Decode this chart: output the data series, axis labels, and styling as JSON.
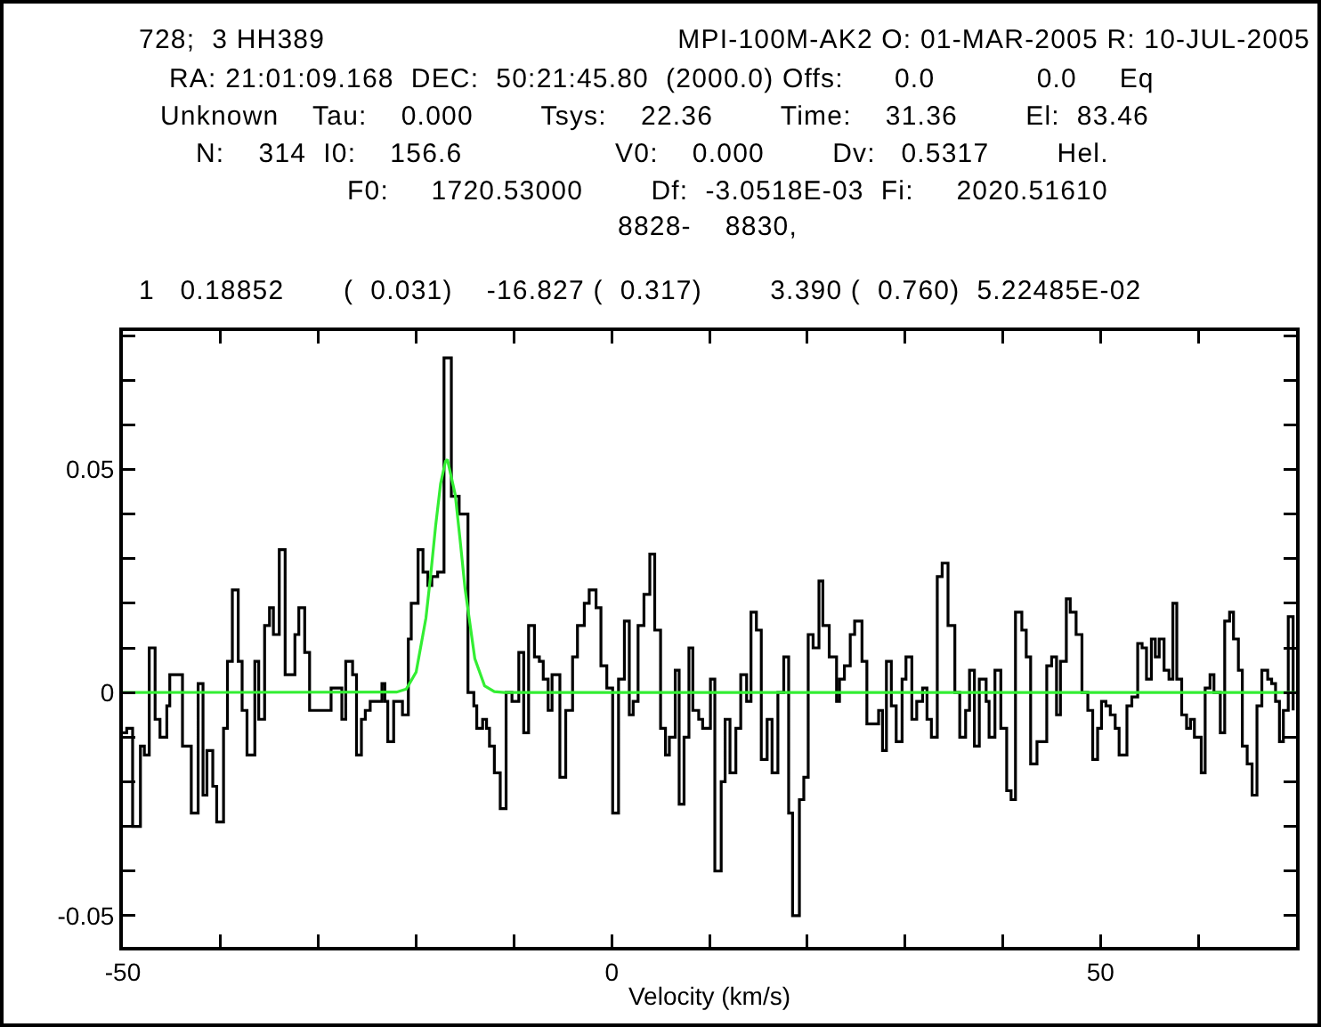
{
  "chart_data": {
    "type": "step",
    "xlabel": "Velocity (km/s)",
    "annotations": [
      "728;  3 HH389",
      "MPI-100M-AK2 O: 01-MAR-2005 R: 10-JUL-2005",
      "RA: 21:01:09.168  DEC:  50:21:45.80  (2000.0) Offs:      0.0            0.0     Eq",
      "Unknown    Tau:    0.000        Tsys:    22.36        Time:    31.36        El:  83.46",
      "N:    314  I0:    156.6                  V0:    0.000        Dv:   0.5317        Hel.",
      "F0:     1720.53000        Df:  -3.0518E-03  Fi:     2020.51610",
      "8828-    8830,",
      "1   0.18852       (  0.031)    -16.827 (  0.317)        3.390 (  0.760)  5.22485E-02"
    ],
    "xlim": [
      -50,
      70
    ],
    "ylim": [
      -0.057,
      0.081
    ],
    "xticks": [
      -50,
      {
        "value": -40,
        "label": null
      },
      {
        "value": -30,
        "label": null
      },
      {
        "value": -20,
        "label": null
      },
      {
        "value": -10,
        "label": null
      },
      0,
      {
        "value": 10,
        "label": null
      },
      {
        "value": 20,
        "label": null
      },
      {
        "value": 30,
        "label": null
      },
      {
        "value": 40,
        "label": null
      },
      50,
      {
        "value": 60,
        "label": null
      }
    ],
    "yticks": [
      -0.05,
      {
        "value": -0.04,
        "label": null
      },
      {
        "value": -0.03,
        "label": null
      },
      {
        "value": -0.02,
        "label": null
      },
      {
        "value": -0.01,
        "label": null
      },
      0,
      {
        "value": 0.01,
        "label": null
      },
      {
        "value": 0.02,
        "label": null
      },
      {
        "value": 0.03,
        "label": null
      },
      {
        "value": 0.04,
        "label": null
      },
      0.05,
      {
        "value": 0.06,
        "label": null
      },
      {
        "value": 0.07,
        "label": null
      },
      {
        "value": 0.08,
        "label": null
      }
    ],
    "grid": false,
    "marker": "none",
    "series": [
      {
        "color": "#000000",
        "x": [
          -50.0,
          -49.6,
          -49.0,
          -48.2,
          -47.8,
          -47.3,
          -46.7,
          -46.2,
          -45.5,
          -45.2,
          -43.9,
          -43.0,
          -42.3,
          -41.8,
          -41.4,
          -40.8,
          -40.4,
          -39.7,
          -39.3,
          -38.8,
          -38.2,
          -37.8,
          -37.3,
          -36.5,
          -36.1,
          -35.5,
          -35.0,
          -34.6,
          -34.0,
          -33.4,
          -32.4,
          -32.0,
          -31.4,
          -30.9,
          -30.3,
          -28.7,
          -27.6,
          -27.2,
          -26.5,
          -26.1,
          -25.6,
          -25.2,
          -24.7,
          -23.5,
          -23.2,
          -22.9,
          -22.3,
          -21.4,
          -20.8,
          -20.5,
          -19.8,
          -19.3,
          -18.8,
          -18.4,
          -17.8,
          -17.15,
          -16.4,
          -15.6,
          -14.7,
          -14.1,
          -13.8,
          -13.2,
          -12.8,
          -12.5,
          -12.0,
          -11.4,
          -10.8,
          -10.2,
          -9.5,
          -9.0,
          -8.5,
          -7.9,
          -7.4,
          -7.0,
          -6.5,
          -6.1,
          -5.3,
          -4.7,
          -4.0,
          -3.5,
          -2.8,
          -2.3,
          -1.6,
          -1.1,
          -0.5,
          0.1,
          0.7,
          1.3,
          1.8,
          2.2,
          2.7,
          3.3,
          3.9,
          4.4,
          5.0,
          5.5,
          5.9,
          6.5,
          6.9,
          7.4,
          7.9,
          8.3,
          8.9,
          9.3,
          10.1,
          10.55,
          11.2,
          11.6,
          12.1,
          12.7,
          13.2,
          13.8,
          14.25,
          14.8,
          15.3,
          15.9,
          16.4,
          17.0,
          17.6,
          18.1,
          18.5,
          19.2,
          19.65,
          20.1,
          20.6,
          21.2,
          21.6,
          22.25,
          23.0,
          23.3,
          23.8,
          24.4,
          24.85,
          25.6,
          26.1,
          26.8,
          27.3,
          27.7,
          28.1,
          28.6,
          29.1,
          29.7,
          30.1,
          30.7,
          31.2,
          31.8,
          32.25,
          32.7,
          33.3,
          33.8,
          34.4,
          35.1,
          35.6,
          36.2,
          36.6,
          37.1,
          37.6,
          38.3,
          38.6,
          39.2,
          39.8,
          40.4,
          40.85,
          41.3,
          41.95,
          42.4,
          42.85,
          43.5,
          44.5,
          45.0,
          45.5,
          45.9,
          46.5,
          46.9,
          47.5,
          48.1,
          48.7,
          49.2,
          49.7,
          50.1,
          50.55,
          51.0,
          51.5,
          51.9,
          52.7,
          53.2,
          53.8,
          54.25,
          54.7,
          55.2,
          55.6,
          56.0,
          56.5,
          57.0,
          57.4,
          57.8,
          58.3,
          58.8,
          59.2,
          59.6,
          60.3,
          60.7,
          61.2,
          61.6,
          62.25,
          62.7,
          63.2,
          63.6,
          64.1,
          64.5,
          65.0,
          65.5,
          66.0,
          66.5,
          67.1,
          67.5,
          67.9,
          68.3,
          68.7,
          69.2,
          69.7
        ],
        "values": [
          -0.009,
          -0.008,
          -0.03,
          -0.012,
          -0.014,
          0.01,
          -0.006,
          -0.01,
          -0.003,
          0.004,
          -0.012,
          -0.027,
          0.002,
          -0.023,
          -0.013,
          -0.021,
          -0.029,
          -0.008,
          0.007,
          0.023,
          0.007,
          -0.004,
          -0.014,
          0.007,
          -0.006,
          0.015,
          0.019,
          0.013,
          0.032,
          0.004,
          0.013,
          0.019,
          0.009,
          -0.004,
          -0.004,
          0.001,
          -0.006,
          0.007,
          0.004,
          -0.014,
          -0.006,
          -0.004,
          -0.002,
          0.002,
          -0.002,
          -0.011,
          -0.002,
          -0.005,
          0.012,
          0.02,
          0.032,
          0.027,
          0.024,
          0.026,
          0.027,
          0.075,
          0.044,
          0.04,
          0.0,
          -0.003,
          -0.008,
          -0.006,
          -0.008,
          -0.012,
          -0.018,
          -0.026,
          0.0,
          -0.002,
          0.009,
          -0.009,
          0.015,
          0.008,
          0.007,
          0.003,
          -0.004,
          0.004,
          -0.019,
          -0.004,
          0.008,
          0.015,
          0.02,
          0.023,
          0.019,
          0.006,
          0.001,
          -0.027,
          0.003,
          0.016,
          -0.005,
          -0.002,
          0.015,
          0.022,
          0.031,
          0.014,
          -0.008,
          -0.014,
          -0.01,
          0.005,
          -0.025,
          -0.01,
          0.01,
          -0.004,
          -0.006,
          -0.008,
          0.003,
          -0.04,
          -0.02,
          -0.006,
          -0.018,
          -0.008,
          0.004,
          -0.002,
          0.018,
          0.014,
          -0.015,
          -0.006,
          -0.018,
          0.0,
          0.008,
          -0.027,
          -0.05,
          -0.024,
          -0.019,
          0.013,
          0.01,
          0.025,
          0.015,
          0.008,
          -0.002,
          0.003,
          0.006,
          0.013,
          0.016,
          0.007,
          -0.007,
          -0.007,
          -0.004,
          -0.013,
          0.007,
          -0.003,
          -0.011,
          0.003,
          0.008,
          -0.006,
          -0.002,
          0.001,
          -0.006,
          -0.01,
          0.026,
          0.029,
          0.015,
          0.0,
          -0.01,
          -0.004,
          0.005,
          -0.012,
          0.003,
          -0.002,
          -0.01,
          0.005,
          -0.008,
          -0.022,
          -0.024,
          0.018,
          0.014,
          0.008,
          -0.016,
          -0.011,
          0.006,
          0.008,
          -0.005,
          0.007,
          0.021,
          0.018,
          0.013,
          0.0,
          -0.004,
          -0.015,
          -0.008,
          -0.002,
          -0.003,
          -0.005,
          -0.008,
          -0.014,
          -0.003,
          -0.001,
          0.011,
          0.01,
          0.003,
          0.012,
          0.008,
          0.012,
          0.005,
          0.003,
          0.02,
          0.003,
          -0.005,
          -0.008,
          -0.006,
          -0.01,
          -0.018,
          0.001,
          0.004,
          0.0,
          -0.009,
          0.016,
          0.018,
          0.012,
          0.005,
          -0.012,
          -0.016,
          -0.023,
          -0.003,
          0.005,
          0.003,
          0.002,
          -0.002,
          -0.011,
          -0.004,
          0.017,
          -0.004
        ]
      },
      {
        "type": "line",
        "color": "#33ee33",
        "x": [
          -50,
          -22,
          -21,
          -20,
          -19,
          -18.5,
          -18,
          -17.5,
          -17,
          -16.8,
          -16,
          -15.5,
          -15,
          -14,
          -13,
          -12,
          -11,
          70
        ],
        "values": [
          0,
          0.0001,
          0.0008,
          0.0046,
          0.0167,
          0.0266,
          0.0375,
          0.0468,
          0.0518,
          0.0522,
          0.0443,
          0.0341,
          0.0233,
          0.0076,
          0.0015,
          0.0002,
          0,
          0
        ]
      }
    ]
  }
}
